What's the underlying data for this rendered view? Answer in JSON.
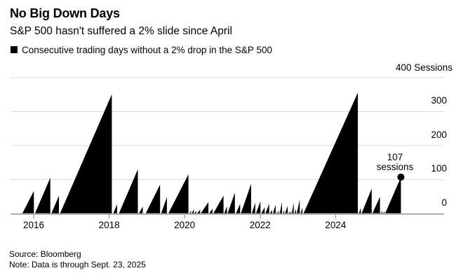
{
  "page": {
    "background": "#ffffff"
  },
  "header": {
    "title": "No Big Down Days",
    "subtitle": "S&P 500 hasn't suffered a 2% slide since April",
    "legend": {
      "swatch_color": "#000000",
      "label": "Consecutive trading days without a 2% drop in the S&P 500"
    }
  },
  "footer": {
    "source": "Source: Bloomberg",
    "note": "Note: Data is through Sept. 23, 2025"
  },
  "chart_data": {
    "type": "area",
    "title": "No Big Down Days",
    "subtitle": "S&P 500 hasn't suffered a 2% slide since April",
    "series_name": "Consecutive trading days without a 2% drop in the S&P 500",
    "unit": "Sessions",
    "fill_color": "#000000",
    "grid_color": "#d9d9d9",
    "axis_color": "#a6a6a6",
    "grid": true,
    "legend_position": "top-left",
    "xlim": [
      2015.4,
      2027.1
    ],
    "ylim": [
      0,
      400
    ],
    "x_tick_years": [
      2016,
      2018,
      2020,
      2022,
      2024
    ],
    "y_ticks": [
      0,
      100,
      200,
      300
    ],
    "y_top_tick": 400,
    "y_top_label": "400 Sessions",
    "annotation": {
      "line1": "107",
      "line2": "sessions",
      "x": 2025.73,
      "value": 107
    },
    "streaks": [
      {
        "start": 2015.7,
        "end": 2016.005,
        "peak": 66
      },
      {
        "start": 2016.035,
        "end": 2016.44,
        "peak": 105
      },
      {
        "start": 2016.47,
        "end": 2016.67,
        "peak": 52
      },
      {
        "start": 2016.7,
        "end": 2018.07,
        "peak": 351
      },
      {
        "start": 2018.11,
        "end": 2018.21,
        "peak": 27
      },
      {
        "start": 2018.26,
        "end": 2018.76,
        "peak": 130
      },
      {
        "start": 2018.79,
        "end": 2018.89,
        "peak": 20
      },
      {
        "start": 2018.97,
        "end": 2019.35,
        "peak": 85
      },
      {
        "start": 2019.38,
        "end": 2019.53,
        "peak": 48
      },
      {
        "start": 2019.57,
        "end": 2020.1,
        "peak": 115
      },
      {
        "start": 2020.13,
        "end": 2020.17,
        "peak": 8
      },
      {
        "start": 2020.185,
        "end": 2020.245,
        "peak": 12
      },
      {
        "start": 2020.26,
        "end": 2020.31,
        "peak": 7
      },
      {
        "start": 2020.33,
        "end": 2020.41,
        "peak": 11
      },
      {
        "start": 2020.43,
        "end": 2020.63,
        "peak": 33
      },
      {
        "start": 2020.655,
        "end": 2020.74,
        "peak": 14
      },
      {
        "start": 2020.76,
        "end": 2021.03,
        "peak": 52
      },
      {
        "start": 2021.05,
        "end": 2021.12,
        "peak": 21
      },
      {
        "start": 2021.14,
        "end": 2021.33,
        "peak": 61
      },
      {
        "start": 2021.36,
        "end": 2021.47,
        "peak": 28
      },
      {
        "start": 2021.49,
        "end": 2021.76,
        "peak": 87
      },
      {
        "start": 2021.78,
        "end": 2021.87,
        "peak": 31
      },
      {
        "start": 2021.89,
        "end": 2022.01,
        "peak": 35
      },
      {
        "start": 2022.03,
        "end": 2022.12,
        "peak": 18
      },
      {
        "start": 2022.14,
        "end": 2022.24,
        "peak": 28
      },
      {
        "start": 2022.26,
        "end": 2022.32,
        "peak": 10
      },
      {
        "start": 2022.34,
        "end": 2022.41,
        "peak": 26
      },
      {
        "start": 2022.43,
        "end": 2022.46,
        "peak": 7
      },
      {
        "start": 2022.475,
        "end": 2022.505,
        "peak": 8
      },
      {
        "start": 2022.52,
        "end": 2022.58,
        "peak": 33
      },
      {
        "start": 2022.6,
        "end": 2022.64,
        "peak": 9
      },
      {
        "start": 2022.66,
        "end": 2022.73,
        "peak": 22
      },
      {
        "start": 2022.75,
        "end": 2022.78,
        "peak": 6
      },
      {
        "start": 2022.795,
        "end": 2022.825,
        "peak": 7
      },
      {
        "start": 2022.84,
        "end": 2022.89,
        "peak": 32
      },
      {
        "start": 2022.91,
        "end": 2022.95,
        "peak": 14
      },
      {
        "start": 2022.97,
        "end": 2023.05,
        "peak": 40
      },
      {
        "start": 2023.07,
        "end": 2023.12,
        "peak": 17
      },
      {
        "start": 2023.15,
        "end": 2024.59,
        "peak": 356
      },
      {
        "start": 2024.615,
        "end": 2024.67,
        "peak": 16
      },
      {
        "start": 2024.69,
        "end": 2024.955,
        "peak": 73
      },
      {
        "start": 2024.975,
        "end": 2025.175,
        "peak": 49
      },
      {
        "start": 2025.195,
        "end": 2025.22,
        "peak": 8
      },
      {
        "start": 2025.235,
        "end": 2025.26,
        "peak": 6
      },
      {
        "start": 2025.275,
        "end": 2025.3,
        "peak": 7
      },
      {
        "start": 2025.315,
        "end": 2025.73,
        "peak": 107,
        "current": true
      }
    ]
  }
}
